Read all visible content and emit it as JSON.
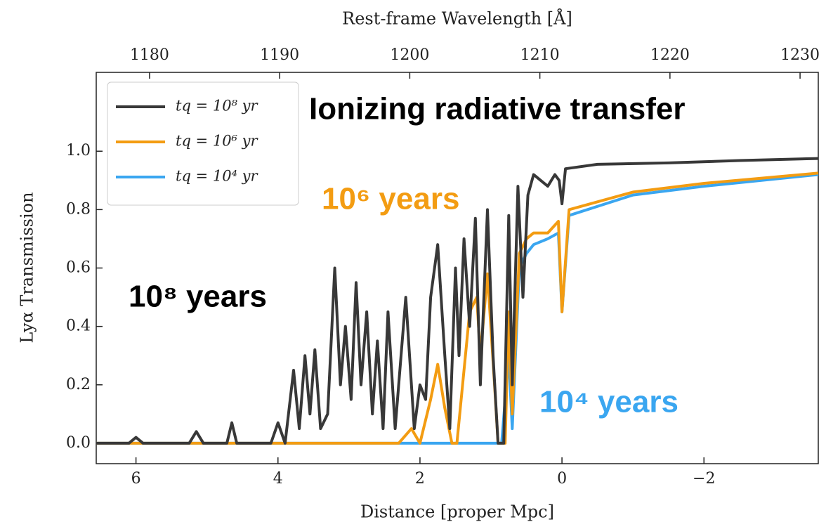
{
  "chart_data": {
    "type": "line",
    "x_label": "Distance [proper Mpc]",
    "y_label": "Lyα Transmission",
    "x2_label": "Rest-frame Wavelength [Å]",
    "xlim": [
      6.56,
      -3.61
    ],
    "xticks": [
      6,
      4,
      2,
      0,
      {
        "value": -2,
        "label": "−2"
      }
    ],
    "ylim": [
      -0.07,
      1.27
    ],
    "yticks": [
      {
        "value": 0,
        "label": "0.0"
      },
      0.2,
      0.4,
      0.6,
      0.8,
      {
        "value": 1,
        "label": "1.0"
      }
    ],
    "x2lim": [
      1175.9,
      1231.4
    ],
    "x2ticks": [
      1180,
      1190,
      1200,
      1210,
      1220,
      1230
    ],
    "legend": "upper left",
    "series": [
      {
        "name": "tq = 10⁸ yr",
        "color": "#383838",
        "x": [
          6.56,
          6.1,
          6.0,
          5.9,
          5.25,
          5.15,
          5.05,
          4.72,
          4.65,
          4.58,
          4.1,
          4.0,
          3.9,
          3.78,
          3.7,
          3.62,
          3.55,
          3.48,
          3.4,
          3.3,
          3.2,
          3.12,
          3.05,
          2.97,
          2.9,
          2.83,
          2.75,
          2.67,
          2.6,
          2.52,
          2.45,
          2.35,
          2.2,
          2.08,
          2.0,
          1.92,
          1.85,
          1.75,
          1.65,
          1.58,
          1.5,
          1.45,
          1.38,
          1.3,
          1.22,
          1.15,
          1.05,
          0.97,
          0.9,
          0.82,
          0.75,
          0.7,
          0.62,
          0.55,
          0.48,
          0.4,
          0.3,
          0.2,
          0.1,
          0.04,
          0.0,
          -0.05,
          -0.5,
          -1.5,
          -2.5,
          -3.61
        ],
        "values": [
          0,
          0,
          0.02,
          0,
          0,
          0.04,
          0,
          0,
          0.07,
          0,
          0,
          0.07,
          0,
          0.25,
          0.05,
          0.3,
          0.1,
          0.32,
          0.05,
          0.1,
          0.6,
          0.2,
          0.4,
          0.15,
          0.55,
          0.2,
          0.45,
          0.1,
          0.35,
          0.05,
          0.45,
          0.05,
          0.5,
          0.05,
          0.2,
          0.15,
          0.5,
          0.68,
          0.3,
          0.05,
          0.6,
          0.3,
          0.7,
          0.4,
          0.77,
          0.2,
          0.8,
          0.3,
          0,
          0,
          0.78,
          0.2,
          0.88,
          0.5,
          0.85,
          0.92,
          0.9,
          0.88,
          0.92,
          0.9,
          0.82,
          0.94,
          0.955,
          0.96,
          0.968,
          0.975
        ]
      },
      {
        "name": "tq = 10⁶ yr",
        "color": "#f39c12",
        "x": [
          6.56,
          2.3,
          2.12,
          2.0,
          1.85,
          1.75,
          1.65,
          1.55,
          1.48,
          1.4,
          1.3,
          1.2,
          1.15,
          1.05,
          0.95,
          0.9,
          0.8,
          0.75,
          0.7,
          0.6,
          0.5,
          0.4,
          0.2,
          0.05,
          0.0,
          -0.1,
          -1.0,
          -2.0,
          -3.61
        ],
        "values": [
          0,
          0,
          0.05,
          0,
          0.15,
          0.27,
          0.12,
          0,
          0,
          0.2,
          0.45,
          0.5,
          0.3,
          0.58,
          0.2,
          0,
          0,
          0.45,
          0.1,
          0.65,
          0.7,
          0.72,
          0.72,
          0.76,
          0.45,
          0.8,
          0.86,
          0.89,
          0.925
        ]
      },
      {
        "name": "tq = 10⁴ yr",
        "color": "#3aa6f0",
        "x": [
          6.56,
          0.85,
          0.75,
          0.7,
          0.6,
          0.5,
          0.4,
          0.2,
          0.05,
          0.0,
          -0.1,
          -1.0,
          -2.0,
          -3.61
        ],
        "values": [
          0,
          0,
          0.3,
          0.05,
          0.6,
          0.65,
          0.68,
          0.7,
          0.72,
          0.45,
          0.78,
          0.85,
          0.88,
          0.92
        ]
      }
    ],
    "annotations": [
      {
        "text": "Ionizing radiative transfer",
        "color": "#000000"
      },
      {
        "text": "10⁶ years",
        "color": "#f39c12"
      },
      {
        "text": "10⁸ years",
        "color": "#000000"
      },
      {
        "text": "10⁴ years",
        "color": "#3aa6f0"
      }
    ]
  }
}
